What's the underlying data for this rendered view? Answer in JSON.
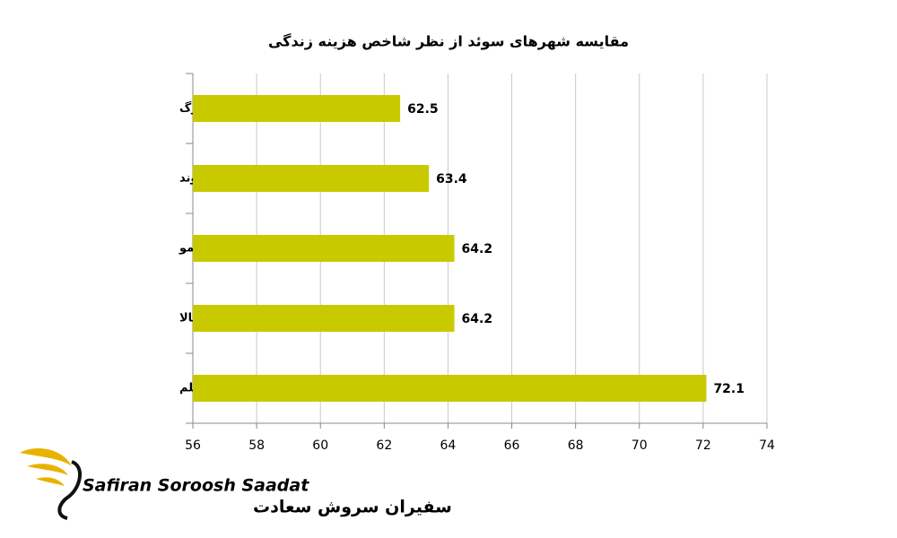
{
  "chart_data": {
    "type": "hbar",
    "title": "مقایسه شهرهای سوئد از نظر شاخص هزینه زندگی",
    "categories": [
      "گوتنبورگ",
      "لوند",
      "مالمو",
      "آپسالا",
      "استکهلم"
    ],
    "values": [
      62.5,
      63.4,
      64.2,
      64.2,
      72.1
    ],
    "color": "#c9c900",
    "xlim": [
      56,
      74
    ],
    "xticks": [
      56,
      58,
      60,
      62,
      64,
      66,
      68,
      70,
      72,
      74
    ],
    "grid": true
  },
  "logo": {
    "name_en": "Safiran Soroosh Saadat",
    "name_fa": "سفیران سروش سعادت"
  }
}
